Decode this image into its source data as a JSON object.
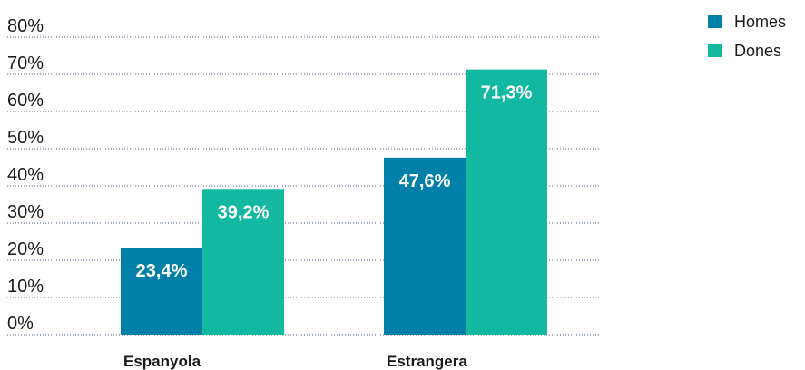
{
  "chart_data": {
    "type": "bar",
    "categories": [
      "Espanyola",
      "Estrangera"
    ],
    "series": [
      {
        "name": "Homes",
        "color": "#0080a8",
        "values": [
          23.4,
          47.6
        ],
        "labels": [
          "23,4%",
          "47,6%"
        ]
      },
      {
        "name": "Dones",
        "color": "#13b8a0",
        "values": [
          39.2,
          71.3
        ],
        "labels": [
          "39,2%",
          "71,3%"
        ]
      }
    ],
    "ylim": [
      0,
      80
    ],
    "yticks": [
      0,
      10,
      20,
      30,
      40,
      50,
      60,
      70,
      80
    ],
    "ytick_labels": [
      "0%",
      "10%",
      "20%",
      "30%",
      "40%",
      "50%",
      "60%",
      "70%",
      "80%"
    ],
    "grid": true,
    "legend_position": "top-right"
  }
}
